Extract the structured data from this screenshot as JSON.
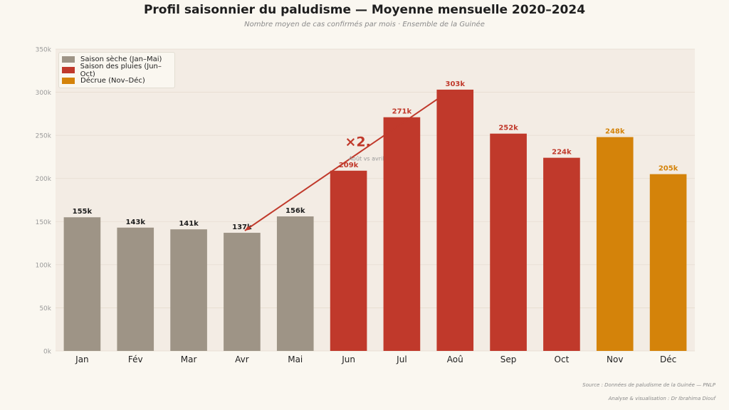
{
  "title": "Profil saisonnier du paludisme — Moyenne mensuelle 2020–2024",
  "subtitle": "Nombre moyen de cas confirmés par mois · Ensemble de la Guinée",
  "source": "Source : Données de paludisme de la Guinée — PNLP",
  "credit": "Analyse & visualisation : Dr Ibrahima Diouf",
  "colors": {
    "dry": "#9e9486",
    "rain": "#c0392b",
    "decline": "#d4830a",
    "plot_bg": "#f3ece4"
  },
  "legend": [
    {
      "label": "Saison sèche (Jan–Mai)",
      "color": "#9e9486"
    },
    {
      "label": "Saison des pluies (Jun–Oct)",
      "color": "#c0392b"
    },
    {
      "label": "Décrue (Nov–Déc)",
      "color": "#d4830a"
    }
  ],
  "annotation": {
    "text": "×2.",
    "subtext": "Août vs avril",
    "from": "Avr",
    "to": "Aoû"
  },
  "chart_data": {
    "type": "bar",
    "categories": [
      "Jan",
      "Fév",
      "Mar",
      "Avr",
      "Mai",
      "Jun",
      "Jul",
      "Aoû",
      "Sep",
      "Oct",
      "Nov",
      "Déc"
    ],
    "values": [
      155,
      143,
      141,
      137,
      156,
      209,
      271,
      303,
      252,
      224,
      248,
      205
    ],
    "value_labels": [
      "155k",
      "143k",
      "141k",
      "137k",
      "156k",
      "209k",
      "271k",
      "303k",
      "252k",
      "224k",
      "248k",
      "205k"
    ],
    "seasons": [
      "dry",
      "dry",
      "dry",
      "dry",
      "dry",
      "rain",
      "rain",
      "rain",
      "rain",
      "rain",
      "decline",
      "decline"
    ],
    "yticks": [
      0,
      50,
      100,
      150,
      200,
      250,
      300,
      350
    ],
    "ytick_labels": [
      "0k",
      "50k",
      "100k",
      "150k",
      "200k",
      "250k",
      "300k",
      "350k"
    ],
    "ylim": [
      0,
      350
    ],
    "grid": true,
    "legend_position": "top-left"
  }
}
